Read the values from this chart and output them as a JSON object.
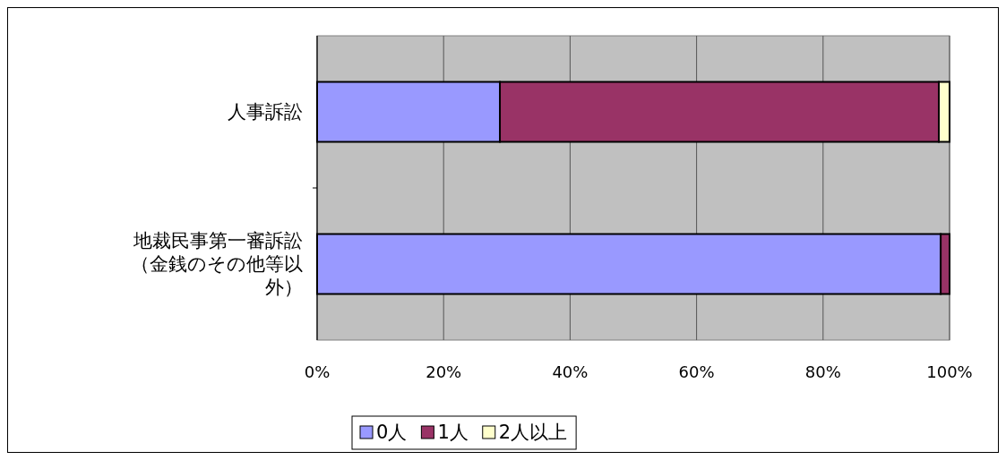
{
  "chart_data": {
    "type": "bar",
    "orientation": "horizontal",
    "stacked": true,
    "categories": [
      "人事訴訟",
      "地裁民事第一審訴訟（金銭のその他等以外）"
    ],
    "series": [
      {
        "name": "0人",
        "color": "#9999ff",
        "values": [
          28.9,
          98.6
        ]
      },
      {
        "name": "1人",
        "color": "#993366",
        "values": [
          69.4,
          1.4
        ]
      },
      {
        "name": "2人以上",
        "color": "#ffffcc",
        "values": [
          1.7,
          null
        ]
      }
    ],
    "xlim": [
      0,
      100
    ],
    "xticks": [
      {
        "value": 0,
        "label": "0%"
      },
      {
        "value": 20,
        "label": "20%"
      },
      {
        "value": 40,
        "label": "40%"
      },
      {
        "value": 60,
        "label": "60%"
      },
      {
        "value": 80,
        "label": "80%"
      },
      {
        "value": 100,
        "label": "100%"
      }
    ],
    "grid": "x",
    "legend": "bottom"
  }
}
